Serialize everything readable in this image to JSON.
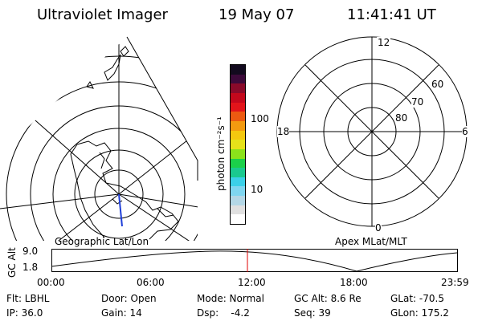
{
  "header": {
    "instrument": "Ultraviolet Imager",
    "date": "19 May 07",
    "time": "11:41:41 UT"
  },
  "left_map": {
    "label": "Geographic Lat/Lon",
    "land_color": "#000000",
    "line_color": "#000000",
    "track_color": "#1f3fd8"
  },
  "colorbar": {
    "unit_label": "photon cm⁻²s⁻¹",
    "tick_labels": [
      "100",
      "10"
    ],
    "colors": [
      "#ffffff",
      "#e0e0e0",
      "#b4d7e6",
      "#7fd6f0",
      "#3bd0e8",
      "#1ac98f",
      "#1bd04a",
      "#8be21b",
      "#e6e21a",
      "#f4c80f",
      "#f39a10",
      "#ec5a11",
      "#e2141a",
      "#c4081c",
      "#8a0a2a",
      "#3c0a3a",
      "#120a1e"
    ]
  },
  "right_plot": {
    "label": "Apex MLat/MLT",
    "mlt_labels": {
      "top": "12",
      "left": "18",
      "right": "6",
      "bottom": "0"
    },
    "lat_labels": [
      "60",
      "70",
      "80"
    ]
  },
  "timeline": {
    "y_axis_label": "GC Alt",
    "y_ticks": [
      "9.0",
      "1.8"
    ],
    "x_ticks": [
      "00:00",
      "06:00",
      "12:00",
      "18:00",
      "23:59"
    ],
    "marker_color": "#e00000"
  },
  "status": {
    "flt": "Flt: LBHL",
    "door": "Door: Open",
    "mode": "Mode: Normal",
    "gcalt": "GC Alt: 8.6 Re",
    "glat": "GLat: -70.5",
    "ip": "IP: 36.0",
    "gain": "Gain: 14",
    "dsp": "Dsp:    -4.2",
    "seq": "Seq: 39",
    "glon": "GLon: 175.2"
  }
}
